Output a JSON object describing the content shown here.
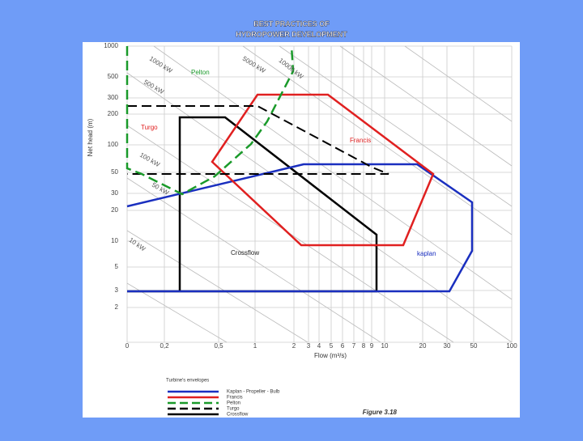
{
  "header": {
    "title": [
      "BEST PRACTICES OF",
      "HYDROPOWER DEVELOPMENT"
    ]
  },
  "figure": {
    "y_axis_label": "Net head (m)",
    "x_axis_label": "Flow (m³/s)",
    "y_ticks": [
      "1000",
      "500",
      "300",
      "200",
      "100",
      "50",
      "30",
      "20",
      "10",
      "5",
      "3",
      "2"
    ],
    "x_ticks": [
      "0",
      "0,2",
      "0,5",
      "1",
      "2",
      "3",
      "4",
      "5",
      "6",
      "7",
      "8",
      "9",
      "10",
      "20",
      "30",
      "50",
      "100"
    ],
    "power_labels": [
      "1000 kW",
      "5000 kW",
      "10000 kW",
      "500 kW",
      "100 kW",
      "50 kW",
      "10 kW"
    ],
    "region_labels": [
      "Pelton",
      "Turgo",
      "Francis",
      "Crossflow",
      "kaplan"
    ],
    "legend": {
      "title": "Turbine's envelopes",
      "entries": [
        "Kaplan - Propeller - Bulb",
        "Francis",
        "Pelton",
        "Turgo",
        "Crossflow"
      ]
    },
    "caption": "Figure 3.18"
  }
}
